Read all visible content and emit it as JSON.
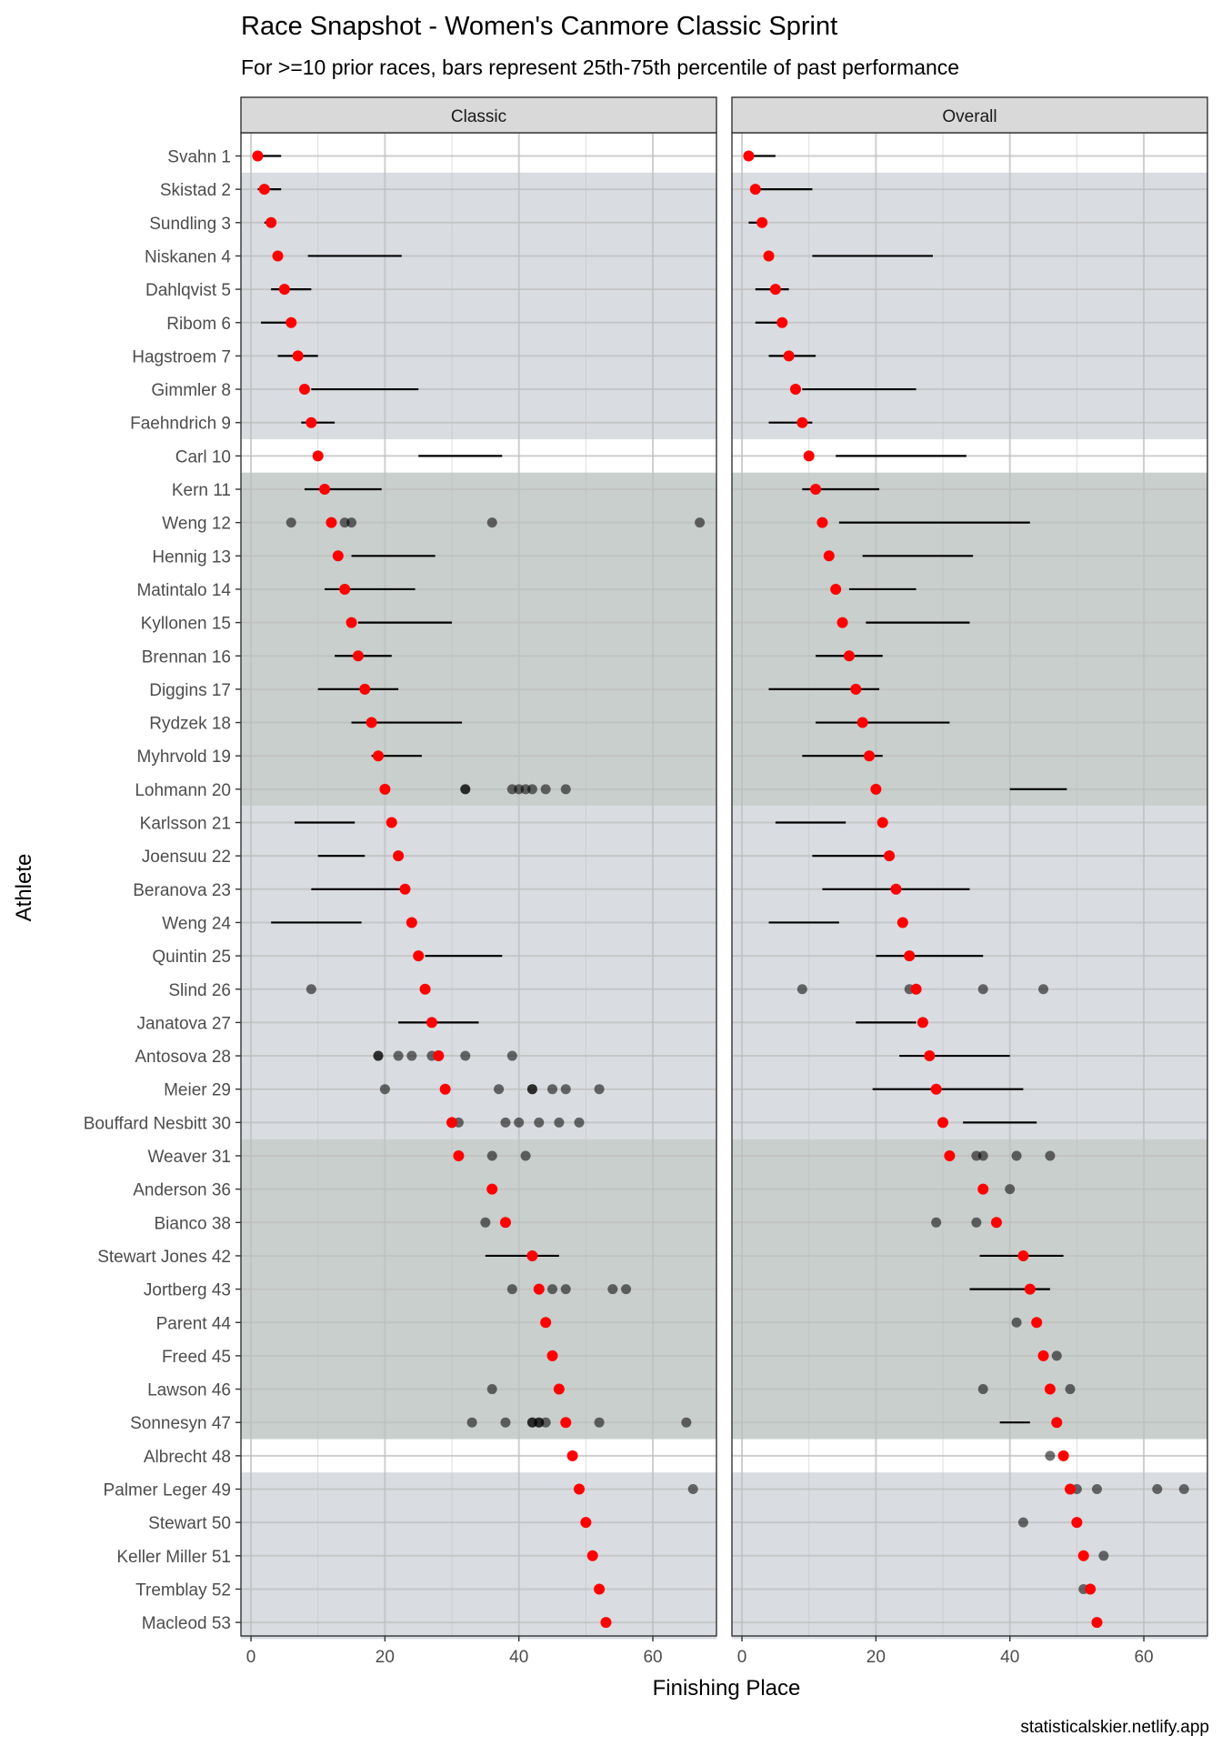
{
  "chart_data": {
    "type": "scatter",
    "title": "Race Snapshot -  Women's Canmore Classic Sprint",
    "subtitle": "For >=10 prior races, bars represent 25th-75th percentile of past performance",
    "xlabel": "Finishing Place",
    "ylabel": "Athlete",
    "caption": "statisticalskier.netlify.app",
    "xlim": [
      -1.5,
      69.5
    ],
    "x_ticks": [
      0,
      20,
      40,
      60
    ],
    "grid": true,
    "colors": {
      "current": "#ff0000",
      "past": "#000000",
      "band_light": "#d9dce1",
      "band_dark": "#c8cfcd",
      "panel_border": "#333333",
      "strip_bg": "#d9d9d9",
      "gridline": "#bfbfbf"
    },
    "bands": [
      {
        "from": "Skistad 2",
        "to": "Faehndrich 9",
        "shade": "light"
      },
      {
        "from": "Kern 11",
        "to": "Lohmann 20",
        "shade": "dark"
      },
      {
        "from": "Karlsson 21",
        "to": "Bouffard Nesbitt 30",
        "shade": "light"
      },
      {
        "from": "Weaver 31",
        "to": "Sonnesyn 47",
        "shade": "dark"
      },
      {
        "from": "Palmer Leger 49",
        "to": "Macleod 53",
        "shade": "light"
      }
    ],
    "athletes": [
      "Svahn 1",
      "Skistad 2",
      "Sundling 3",
      "Niskanen 4",
      "Dahlqvist 5",
      "Ribom 6",
      "Hagstroem 7",
      "Gimmler 8",
      "Faehndrich 9",
      "Carl 10",
      "Kern 11",
      "Weng 12",
      "Hennig 13",
      "Matintalo 14",
      "Kyllonen 15",
      "Brennan 16",
      "Diggins 17",
      "Rydzek 18",
      "Myhrvold 19",
      "Lohmann 20",
      "Karlsson 21",
      "Joensuu 22",
      "Beranova 23",
      "Weng 24",
      "Quintin 25",
      "Slind 26",
      "Janatova 27",
      "Antosova 28",
      "Meier 29",
      "Bouffard Nesbitt 30",
      "Weaver 31",
      "Anderson 36",
      "Bianco 38",
      "Stewart Jones 42",
      "Jortberg 43",
      "Parent 44",
      "Freed 45",
      "Lawson 46",
      "Sonnesyn 47",
      "Albrecht 48",
      "Palmer Leger 49",
      "Stewart 50",
      "Keller Miller 51",
      "Tremblay 52",
      "Macleod 53"
    ],
    "current_place": [
      1,
      2,
      3,
      4,
      5,
      6,
      7,
      8,
      9,
      10,
      11,
      12,
      13,
      14,
      15,
      16,
      17,
      18,
      19,
      20,
      21,
      22,
      23,
      24,
      25,
      26,
      27,
      28,
      29,
      30,
      31,
      36,
      38,
      42,
      43,
      44,
      45,
      46,
      47,
      48,
      49,
      50,
      51,
      52,
      53
    ],
    "panels": [
      {
        "strip": "Classic",
        "iqr": [
          [
            0.5,
            4.5
          ],
          [
            1,
            4.5
          ],
          [
            2,
            3.5
          ],
          [
            8.5,
            22.5
          ],
          [
            3,
            9
          ],
          [
            1.5,
            6.5
          ],
          [
            4,
            10
          ],
          [
            9,
            25
          ],
          [
            7.5,
            12.5
          ],
          [
            25,
            37.5
          ],
          [
            8,
            19.5
          ],
          null,
          [
            15,
            27.5
          ],
          [
            11,
            24.5
          ],
          [
            16,
            30
          ],
          [
            12.5,
            21
          ],
          [
            10,
            22
          ],
          [
            15,
            31.5
          ],
          [
            18,
            25.5
          ],
          null,
          [
            6.5,
            15.5
          ],
          [
            10,
            17
          ],
          [
            9,
            23
          ],
          [
            3,
            16.5
          ],
          [
            26,
            37.5
          ],
          null,
          [
            22,
            34
          ],
          null,
          null,
          null,
          null,
          null,
          null,
          [
            35,
            46
          ],
          null,
          null,
          null,
          null,
          null,
          null,
          null,
          null,
          null,
          null,
          null
        ],
        "past_points": [
          [],
          [],
          [],
          [],
          [],
          [],
          [],
          [],
          [],
          [],
          [],
          [
            6,
            14,
            15,
            36,
            67
          ],
          [],
          [],
          [],
          [],
          [],
          [],
          [],
          [
            32,
            32,
            39,
            40,
            41,
            42,
            44,
            47
          ],
          [],
          [],
          [],
          [],
          [],
          [
            9
          ],
          [],
          [
            19,
            19,
            22,
            24,
            27,
            32,
            39
          ],
          [
            20,
            37,
            42,
            42,
            45,
            47,
            52
          ],
          [
            31,
            38,
            40,
            43,
            46,
            49
          ],
          [
            36,
            41
          ],
          [],
          [
            35
          ],
          [],
          [
            39,
            45,
            47,
            54,
            56
          ],
          [],
          [],
          [
            36
          ],
          [
            33,
            38,
            42,
            42,
            43,
            43,
            44,
            52,
            65
          ],
          [],
          [
            66
          ],
          [],
          [],
          [],
          []
        ]
      },
      {
        "strip": "Overall",
        "iqr": [
          [
            1,
            5
          ],
          [
            1.5,
            10.5
          ],
          [
            1,
            3
          ],
          [
            10.5,
            28.5
          ],
          [
            2,
            7
          ],
          [
            2,
            6
          ],
          [
            4,
            11
          ],
          [
            9,
            26
          ],
          [
            4,
            10.5
          ],
          [
            14,
            33.5
          ],
          [
            9,
            20.5
          ],
          [
            14.5,
            43
          ],
          [
            18,
            34.5
          ],
          [
            16,
            26
          ],
          [
            18.5,
            34
          ],
          [
            11,
            21
          ],
          [
            4,
            20.5
          ],
          [
            11,
            31
          ],
          [
            9,
            21
          ],
          [
            40,
            48.5
          ],
          [
            5,
            15.5
          ],
          [
            10.5,
            22
          ],
          [
            12,
            34
          ],
          [
            4,
            14.5
          ],
          [
            20,
            36
          ],
          null,
          [
            17,
            26
          ],
          [
            23.5,
            40
          ],
          [
            19.5,
            42
          ],
          [
            33,
            44
          ],
          null,
          null,
          null,
          [
            35.5,
            48
          ],
          [
            34,
            46
          ],
          null,
          null,
          null,
          [
            38.5,
            43
          ],
          null,
          null,
          null,
          null,
          null,
          null
        ],
        "past_points": [
          [],
          [],
          [],
          [],
          [],
          [],
          [],
          [],
          [],
          [],
          [],
          [],
          [],
          [],
          [],
          [],
          [],
          [],
          [],
          [],
          [],
          [],
          [],
          [],
          [],
          [
            9,
            25,
            36,
            45
          ],
          [],
          [],
          [],
          [],
          [
            35,
            36,
            41,
            46
          ],
          [
            40
          ],
          [
            29,
            35
          ],
          [],
          [],
          [
            41
          ],
          [
            47
          ],
          [
            36,
            49
          ],
          [],
          [
            46
          ],
          [
            50,
            53,
            62,
            66
          ],
          [
            42
          ],
          [
            54
          ],
          [
            51
          ],
          []
        ]
      }
    ]
  }
}
